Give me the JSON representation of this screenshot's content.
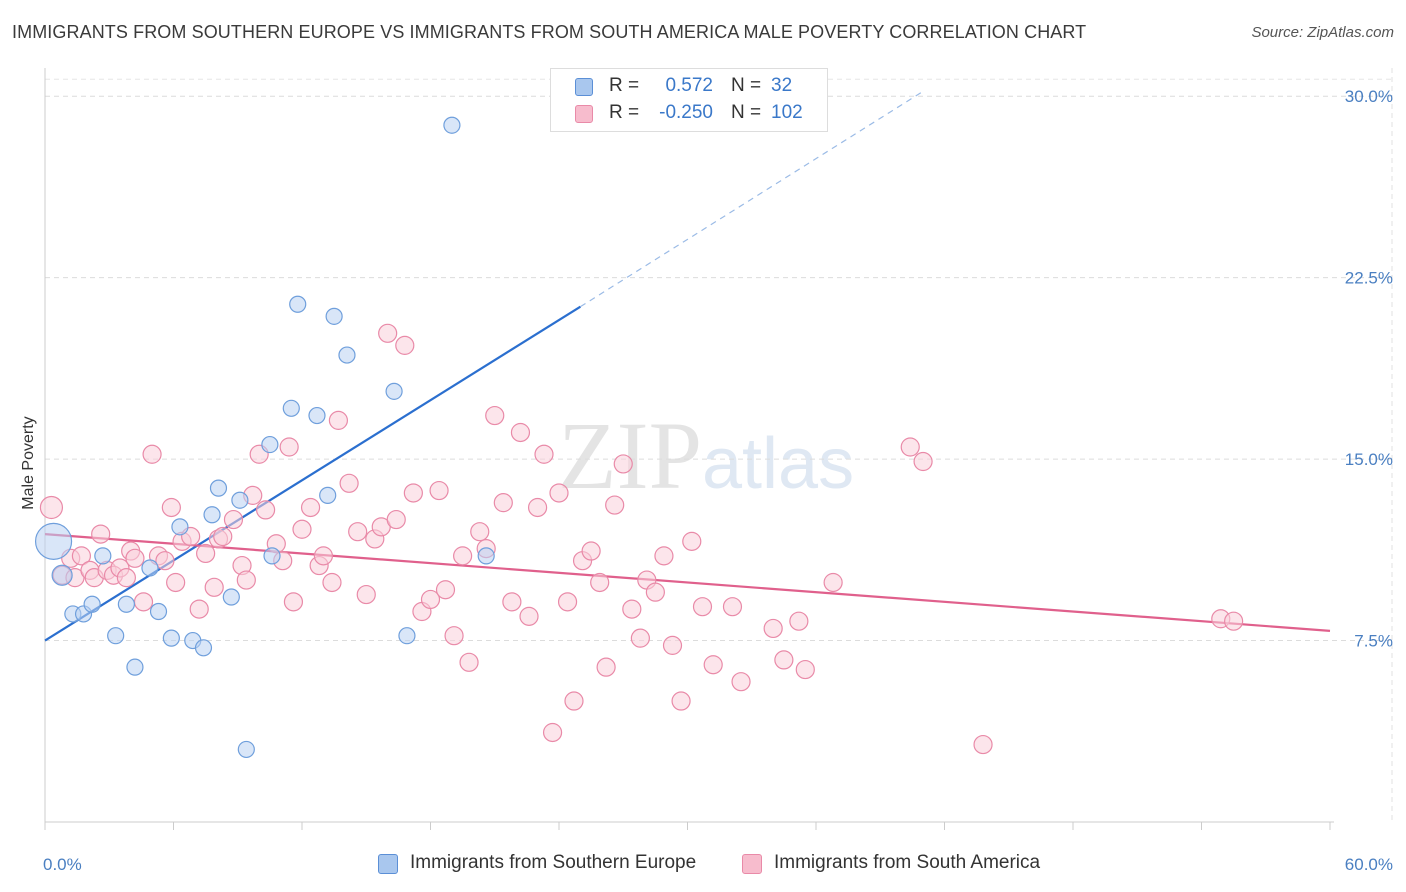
{
  "title": "IMMIGRANTS FROM SOUTHERN EUROPE VS IMMIGRANTS FROM SOUTH AMERICA MALE POVERTY CORRELATION CHART",
  "source": "Source: ZipAtlas.com",
  "watermark": {
    "zip": "ZIP",
    "atlas": "atlas"
  },
  "legend": {
    "rows": [
      {
        "r_label": "R =",
        "r_value": "0.572",
        "n_label": "N =",
        "n_value": "32",
        "color": "#a9c7ee",
        "border": "#5b8fd6"
      },
      {
        "r_label": "R =",
        "r_value": "-0.250",
        "n_label": "N =",
        "n_value": "102",
        "color": "#f7bccd",
        "border": "#e98aa8"
      }
    ]
  },
  "chart_data": {
    "type": "scatter",
    "ylabel": "Male Poverty",
    "xlabel": "",
    "x_tick_labels": [
      "0.0%",
      "60.0%"
    ],
    "y_tick_labels": [
      "7.5%",
      "15.0%",
      "22.5%",
      "30.0%"
    ],
    "y_ticks": [
      7.5,
      15.0,
      22.5,
      30.0
    ],
    "xlim": [
      0,
      60
    ],
    "ylim": [
      0,
      31
    ],
    "grid": true,
    "series": [
      {
        "name": "Immigrants from Southern Europe",
        "color": "#6f9fdc",
        "fill": "#b9d2f2",
        "trend": {
          "x0": 0,
          "y0": 7.5,
          "x1": 25,
          "y1": 21.3,
          "dashed_to_x": 41,
          "dashed_to_y": 30.2
        },
        "points": [
          [
            0.4,
            11.6,
            18
          ],
          [
            0.8,
            10.2,
            10
          ],
          [
            1.3,
            8.6,
            8
          ],
          [
            1.8,
            8.6,
            8
          ],
          [
            2.2,
            9.0,
            8
          ],
          [
            2.7,
            11.0,
            8
          ],
          [
            3.3,
            7.7,
            8
          ],
          [
            3.8,
            9.0,
            8
          ],
          [
            4.2,
            6.4,
            8
          ],
          [
            4.9,
            10.5,
            8
          ],
          [
            5.3,
            8.7,
            8
          ],
          [
            5.9,
            7.6,
            8
          ],
          [
            6.3,
            12.2,
            8
          ],
          [
            6.9,
            7.5,
            8
          ],
          [
            7.4,
            7.2,
            8
          ],
          [
            7.8,
            12.7,
            8
          ],
          [
            8.1,
            13.8,
            8
          ],
          [
            8.7,
            9.3,
            8
          ],
          [
            9.1,
            13.3,
            8
          ],
          [
            9.4,
            3.0,
            8
          ],
          [
            10.5,
            15.6,
            8
          ],
          [
            10.6,
            11.0,
            8
          ],
          [
            11.5,
            17.1,
            8
          ],
          [
            11.8,
            21.4,
            8
          ],
          [
            12.7,
            16.8,
            8
          ],
          [
            13.2,
            13.5,
            8
          ],
          [
            13.5,
            20.9,
            8
          ],
          [
            14.1,
            19.3,
            8
          ],
          [
            16.3,
            17.8,
            8
          ],
          [
            16.9,
            7.7,
            8
          ],
          [
            19.0,
            28.8,
            8
          ],
          [
            20.6,
            11.0,
            8
          ]
        ]
      },
      {
        "name": "Immigrants from South America",
        "color": "#e98aa8",
        "fill": "#f9cfdb",
        "trend": {
          "x0": 0,
          "y0": 11.9,
          "x1": 60,
          "y1": 7.9
        },
        "points": [
          [
            0.3,
            13.0,
            11
          ],
          [
            0.8,
            10.2,
            9
          ],
          [
            1.2,
            10.9,
            9
          ],
          [
            1.4,
            10.1,
            9
          ],
          [
            1.7,
            11.0,
            9
          ],
          [
            2.1,
            10.4,
            9
          ],
          [
            2.3,
            10.1,
            9
          ],
          [
            2.6,
            11.9,
            9
          ],
          [
            2.9,
            10.4,
            9
          ],
          [
            3.2,
            10.2,
            9
          ],
          [
            3.5,
            10.5,
            9
          ],
          [
            3.8,
            10.1,
            9
          ],
          [
            4.0,
            11.2,
            9
          ],
          [
            4.2,
            10.9,
            9
          ],
          [
            4.6,
            9.1,
            9
          ],
          [
            5.0,
            15.2,
            9
          ],
          [
            5.3,
            11.0,
            9
          ],
          [
            5.6,
            10.8,
            9
          ],
          [
            5.9,
            13.0,
            9
          ],
          [
            6.1,
            9.9,
            9
          ],
          [
            6.4,
            11.6,
            9
          ],
          [
            6.8,
            11.8,
            9
          ],
          [
            7.2,
            8.8,
            9
          ],
          [
            7.5,
            11.1,
            9
          ],
          [
            7.9,
            9.7,
            9
          ],
          [
            8.1,
            11.7,
            9
          ],
          [
            8.3,
            11.8,
            9
          ],
          [
            8.8,
            12.5,
            9
          ],
          [
            9.2,
            10.6,
            9
          ],
          [
            9.4,
            10.0,
            9
          ],
          [
            9.7,
            13.5,
            9
          ],
          [
            10.0,
            15.2,
            9
          ],
          [
            10.3,
            12.9,
            9
          ],
          [
            10.8,
            11.5,
            9
          ],
          [
            11.1,
            10.8,
            9
          ],
          [
            11.4,
            15.5,
            9
          ],
          [
            11.6,
            9.1,
            9
          ],
          [
            12.0,
            12.1,
            9
          ],
          [
            12.4,
            13.0,
            9
          ],
          [
            12.8,
            10.6,
            9
          ],
          [
            13.0,
            11.0,
            9
          ],
          [
            13.4,
            9.9,
            9
          ],
          [
            13.7,
            16.6,
            9
          ],
          [
            14.2,
            14.0,
            9
          ],
          [
            14.6,
            12.0,
            9
          ],
          [
            15.0,
            9.4,
            9
          ],
          [
            15.4,
            11.7,
            9
          ],
          [
            15.7,
            12.2,
            9
          ],
          [
            16.0,
            20.2,
            9
          ],
          [
            16.4,
            12.5,
            9
          ],
          [
            16.8,
            19.7,
            9
          ],
          [
            17.2,
            13.6,
            9
          ],
          [
            17.6,
            8.7,
            9
          ],
          [
            18.0,
            9.2,
            9
          ],
          [
            18.4,
            13.7,
            9
          ],
          [
            18.7,
            9.6,
            9
          ],
          [
            19.1,
            7.7,
            9
          ],
          [
            19.5,
            11.0,
            9
          ],
          [
            19.8,
            6.6,
            9
          ],
          [
            20.3,
            12.0,
            9
          ],
          [
            20.6,
            11.3,
            9
          ],
          [
            21.0,
            16.8,
            9
          ],
          [
            21.4,
            13.2,
            9
          ],
          [
            21.8,
            9.1,
            9
          ],
          [
            22.2,
            16.1,
            9
          ],
          [
            22.6,
            8.5,
            9
          ],
          [
            23.0,
            13.0,
            9
          ],
          [
            23.3,
            15.2,
            9
          ],
          [
            23.7,
            3.7,
            9
          ],
          [
            24.0,
            13.6,
            9
          ],
          [
            24.4,
            9.1,
            9
          ],
          [
            24.7,
            5.0,
            9
          ],
          [
            25.1,
            10.8,
            9
          ],
          [
            25.5,
            11.2,
            9
          ],
          [
            25.9,
            9.9,
            9
          ],
          [
            26.2,
            6.4,
            9
          ],
          [
            26.6,
            13.1,
            9
          ],
          [
            27.0,
            14.8,
            9
          ],
          [
            27.4,
            8.8,
            9
          ],
          [
            27.8,
            7.6,
            9
          ],
          [
            28.1,
            10.0,
            9
          ],
          [
            28.5,
            9.5,
            9
          ],
          [
            28.9,
            11.0,
            9
          ],
          [
            29.3,
            7.3,
            9
          ],
          [
            29.7,
            5.0,
            9
          ],
          [
            30.2,
            11.6,
            9
          ],
          [
            30.7,
            8.9,
            9
          ],
          [
            31.2,
            6.5,
            9
          ],
          [
            32.1,
            8.9,
            9
          ],
          [
            32.5,
            5.8,
            9
          ],
          [
            34.0,
            8.0,
            9
          ],
          [
            34.5,
            6.7,
            9
          ],
          [
            35.2,
            8.3,
            9
          ],
          [
            35.5,
            6.3,
            9
          ],
          [
            36.8,
            9.9,
            9
          ],
          [
            40.4,
            15.5,
            9
          ],
          [
            41.0,
            14.9,
            9
          ],
          [
            43.8,
            3.2,
            9
          ],
          [
            54.9,
            8.4,
            9
          ],
          [
            55.5,
            8.3,
            9
          ],
          [
            6.6,
            15.3,
            0
          ],
          [
            5.6,
            12.9,
            0
          ]
        ]
      }
    ]
  }
}
